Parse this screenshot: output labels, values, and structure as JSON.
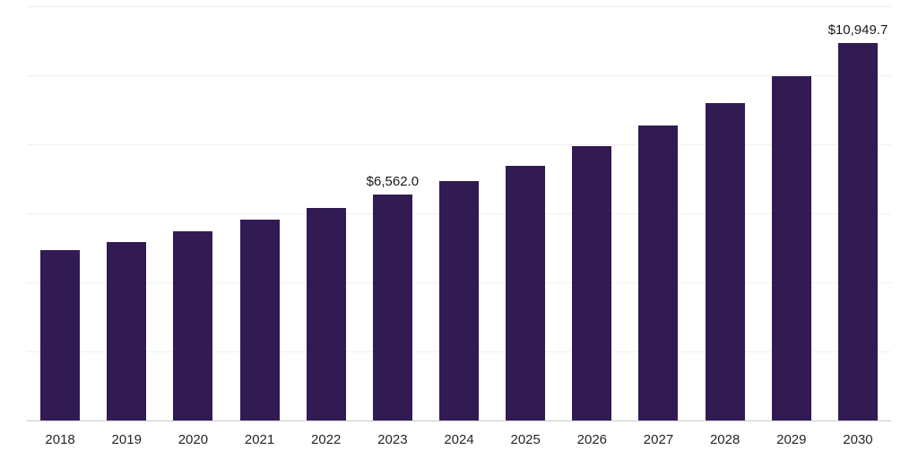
{
  "chart_data": {
    "type": "bar",
    "title": "",
    "xlabel": "",
    "ylabel": "",
    "categories": [
      "2018",
      "2019",
      "2020",
      "2021",
      "2022",
      "2023",
      "2024",
      "2025",
      "2026",
      "2027",
      "2028",
      "2029",
      "2030"
    ],
    "values": [
      4950,
      5200,
      5510,
      5840,
      6170,
      6562.0,
      6960,
      7400,
      7980,
      8570,
      9230,
      10000,
      10949.7
    ],
    "annotations": [
      {
        "category": "2023",
        "text": "$6,562.0"
      },
      {
        "category": "2030",
        "text": "$10,949.7"
      }
    ],
    "ylim": [
      0,
      12000
    ],
    "gridlines": [
      2000,
      4000,
      6000,
      8000,
      10000,
      12000
    ],
    "grid_on": true,
    "legend_position": "none",
    "bar_color": "#311b52",
    "gridline_color": "#f0f0f0",
    "axis_line_color": "#c9c9c9",
    "tick_label_color": "#262626",
    "data_label_color": "#1a1a1a"
  }
}
